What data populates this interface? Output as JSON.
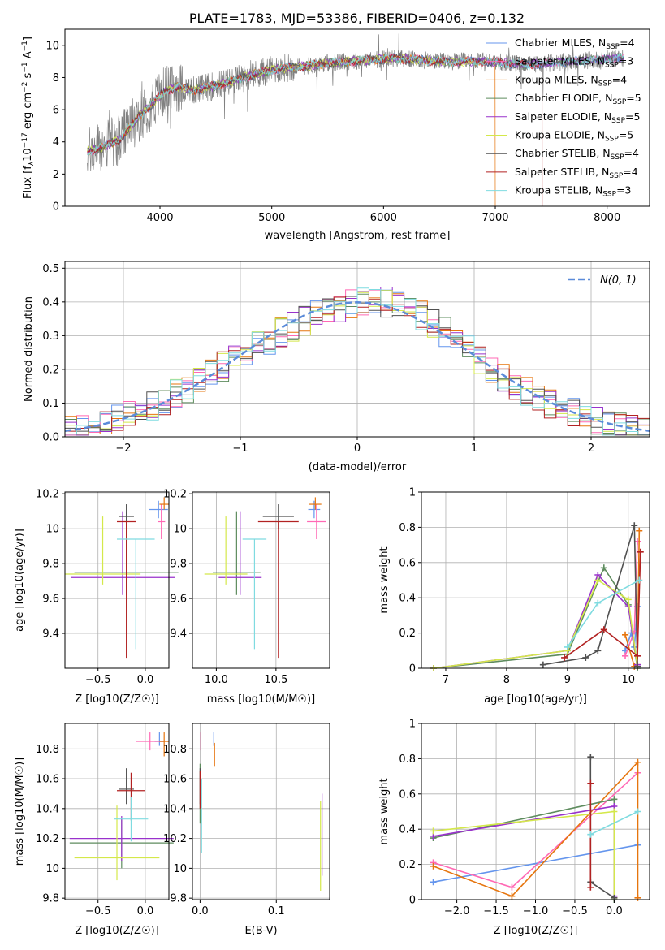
{
  "chart_data": [
    {
      "id": "spectrum",
      "type": "line",
      "title": "PLATE=1783, MJD=53386, FIBERID=0406, z=0.132",
      "xlabel": "wavelength [Angstrom, rest frame]",
      "ylabel": "Flux [f_λ10^-17 erg cm^-2 s^-1 A^-1]",
      "xlim": [
        3150,
        8380
      ],
      "ylim": [
        0,
        11
      ],
      "xticks": [
        4000,
        5000,
        6000,
        7000,
        8000
      ],
      "yticks": [
        0,
        2,
        4,
        6,
        8,
        10
      ],
      "grid": false,
      "legend": "right",
      "continuum": {
        "x": [
          3350,
          3500,
          3650,
          3800,
          3950,
          4050,
          4150,
          4300,
          4500,
          4700,
          4900,
          5100,
          5300,
          5500,
          5700,
          5900,
          6100,
          6300,
          6500,
          6700,
          6900,
          7100,
          7300,
          7500,
          7700,
          7900,
          8100
        ],
        "y": [
          3.4,
          3.7,
          4.2,
          5.5,
          6.5,
          7.2,
          7.4,
          7.2,
          7.5,
          7.9,
          8.3,
          8.6,
          8.7,
          8.9,
          9.0,
          9.1,
          9.2,
          9.1,
          9.0,
          9.0,
          9.0,
          8.9,
          8.8,
          8.9,
          9.0,
          9.1,
          9.2
        ]
      },
      "observed_range": [
        3350,
        8150
      ],
      "series": [
        {
          "name": "Chabrier MILES, N_SSP=4",
          "label_main": "Chabrier MILES, N",
          "label_sub": "SSP",
          "label_end": "=4",
          "color": "#6495ed"
        },
        {
          "name": "Salpeter MILES, N_SSP=3",
          "label_main": "Salpeter MILES, N",
          "label_sub": "SSP",
          "label_end": "=3",
          "color": "#ff69b4"
        },
        {
          "name": "Kroupa MILES, N_SSP=4",
          "label_main": "Kroupa MILES, N",
          "label_sub": "SSP",
          "label_end": "=4",
          "color": "#e6750e"
        },
        {
          "name": "Chabrier ELODIE, N_SSP=5",
          "label_main": "Chabrier ELODIE, N",
          "label_sub": "SSP",
          "label_end": "=5",
          "color": "#5e8c5e"
        },
        {
          "name": "Salpeter ELODIE, N_SSP=5",
          "label_main": "Salpeter ELODIE, N",
          "label_sub": "SSP",
          "label_end": "=5",
          "color": "#9932cc"
        },
        {
          "name": "Kroupa ELODIE, N_SSP=5",
          "label_main": "Kroupa ELODIE, N",
          "label_sub": "SSP",
          "label_end": "=5",
          "color": "#d4e84a"
        },
        {
          "name": "Chabrier STELIB, N_SSP=4",
          "label_main": "Chabrier STELIB, N",
          "label_sub": "SSP",
          "label_end": "=4",
          "color": "#505050"
        },
        {
          "name": "Salpeter STELIB, N_SSP=4",
          "label_main": "Salpeter STELIB, N",
          "label_sub": "SSP",
          "label_end": "=4",
          "color": "#b22222"
        },
        {
          "name": "Kroupa STELIB, N_SSP=3",
          "label_main": "Kroupa STELIB, N",
          "label_sub": "SSP",
          "label_end": "=3",
          "color": "#7fdbe0"
        }
      ],
      "cutoffs": [
        {
          "series": 2,
          "x": 7000
        },
        {
          "series": 5,
          "x": 6800
        },
        {
          "series": 7,
          "x": 7420
        }
      ]
    },
    {
      "id": "residuals",
      "type": "step",
      "xlabel": "(data-model)/error",
      "ylabel": "Normed distribution",
      "xlim": [
        -2.5,
        2.5
      ],
      "ylim": [
        0,
        0.52
      ],
      "xticks": [
        -2,
        -1,
        0,
        1,
        2
      ],
      "xtick_labels": [
        "−2",
        "−1",
        "0",
        "1",
        "2"
      ],
      "yticks": [
        0.0,
        0.1,
        0.2,
        0.3,
        0.4,
        0.5
      ],
      "ytick_labels": [
        "0.0",
        "0.1",
        "0.2",
        "0.3",
        "0.4",
        "0.5"
      ],
      "grid": true,
      "legend": "top-right",
      "gaussian_label": "N(0, 1)",
      "gaussian_color": "#5b8bd9",
      "bin_width": 0.1,
      "bins_start": -2.5
    },
    {
      "id": "age-vs-z",
      "type": "errorbar",
      "xlabel": "Z [log10(Z/Z☉)]",
      "ylabel": "age  [log10(age/yr)]",
      "xlim": [
        -0.85,
        0.25
      ],
      "ylim": [
        9.2,
        10.21
      ],
      "xticks": [
        -0.5,
        0.0
      ],
      "xtick_labels": [
        "−0.5",
        "0.0"
      ],
      "yticks": [
        9.4,
        9.6,
        9.8,
        10.0,
        10.2
      ],
      "grid": true,
      "points": [
        {
          "color": "#6495ed",
          "x": 0.14,
          "xerr": 0.1,
          "y": 10.11,
          "yerr": [
            0.05,
            0.05
          ]
        },
        {
          "color": "#ff69b4",
          "x": 0.17,
          "xerr": 0.04,
          "y": 10.04,
          "yerr": [
            0.1,
            0.1
          ]
        },
        {
          "color": "#e6750e",
          "x": 0.2,
          "xerr": 0.05,
          "y": 10.14,
          "yerr": [
            0.03,
            0.04
          ]
        },
        {
          "color": "#5e8c5e",
          "x": -0.2,
          "xerr": 0.55,
          "y": 9.75,
          "yerr": [
            0.13,
            0.35
          ]
        },
        {
          "color": "#9932cc",
          "x": -0.24,
          "xerr": 0.55,
          "y": 9.72,
          "yerr": [
            0.1,
            0.38
          ]
        },
        {
          "color": "#d4e84a",
          "x": -0.45,
          "xerr": 0.4,
          "y": 9.74,
          "yerr": [
            0.06,
            0.33
          ]
        },
        {
          "color": "#505050",
          "x": -0.2,
          "xerr": 0.08,
          "y": 10.07,
          "yerr": [
            0.07,
            0.07
          ]
        },
        {
          "color": "#b22222",
          "x": -0.2,
          "xerr": 0.1,
          "y": 10.04,
          "yerr": [
            0.78,
            0.0
          ]
        },
        {
          "color": "#7fdbe0",
          "x": -0.1,
          "xerr": 0.2,
          "y": 9.94,
          "yerr": [
            0.63,
            0.0
          ]
        }
      ]
    },
    {
      "id": "age-vs-mass",
      "type": "errorbar",
      "xlabel": "mass [log10(M/M☉)]",
      "ylabel": "",
      "xlim": [
        9.8,
        10.95
      ],
      "ylim": [
        9.2,
        10.21
      ],
      "xticks": [
        10.0,
        10.5
      ],
      "xtick_labels": [
        "10.0",
        "10.5"
      ],
      "yticks": [
        9.4,
        9.6,
        9.8,
        10.0,
        10.2
      ],
      "grid": true,
      "points": [
        {
          "color": "#6495ed",
          "x": 10.82,
          "xerr": 0.05,
          "y": 10.11,
          "yerr": [
            0.05,
            0.05
          ]
        },
        {
          "color": "#ff69b4",
          "x": 10.84,
          "xerr": 0.08,
          "y": 10.04,
          "yerr": [
            0.1,
            0.1
          ]
        },
        {
          "color": "#e6750e",
          "x": 10.83,
          "xerr": 0.05,
          "y": 10.14,
          "yerr": [
            0.03,
            0.04
          ]
        },
        {
          "color": "#5e8c5e",
          "x": 10.17,
          "xerr": 0.2,
          "y": 9.75,
          "yerr": [
            0.13,
            0.35
          ]
        },
        {
          "color": "#9932cc",
          "x": 10.2,
          "xerr": 0.18,
          "y": 9.72,
          "yerr": [
            0.1,
            0.38
          ]
        },
        {
          "color": "#d4e84a",
          "x": 10.08,
          "xerr": 0.18,
          "y": 9.74,
          "yerr": [
            0.06,
            0.33
          ]
        },
        {
          "color": "#505050",
          "x": 10.52,
          "xerr": 0.13,
          "y": 10.07,
          "yerr": [
            0.07,
            0.07
          ]
        },
        {
          "color": "#b22222",
          "x": 10.52,
          "xerr": 0.17,
          "y": 10.04,
          "yerr": [
            0.78,
            0.0
          ]
        },
        {
          "color": "#7fdbe0",
          "x": 10.32,
          "xerr": 0.1,
          "y": 9.94,
          "yerr": [
            0.63,
            0.0
          ]
        }
      ]
    },
    {
      "id": "weight-vs-age",
      "type": "line",
      "xlabel": "age  [log10(age/yr)]",
      "ylabel": "mass weight",
      "xlim": [
        6.6,
        10.35
      ],
      "ylim": [
        0,
        1
      ],
      "xticks": [
        7,
        8,
        9,
        10
      ],
      "yticks": [
        0.0,
        0.2,
        0.4,
        0.6,
        0.8,
        1.0
      ],
      "grid": true,
      "series": [
        {
          "color": "#6495ed",
          "x": [
            9.95,
            10.05,
            10.1,
            10.15
          ],
          "y": [
            0.1,
            0.2,
            0.12,
            0.35
          ]
        },
        {
          "color": "#ff69b4",
          "x": [
            9.95,
            10.1,
            10.15
          ],
          "y": [
            0.07,
            0.21,
            0.72
          ]
        },
        {
          "color": "#e6750e",
          "x": [
            9.95,
            10.1,
            10.15,
            10.18
          ],
          "y": [
            0.19,
            0.01,
            0.02,
            0.78
          ]
        },
        {
          "color": "#5e8c5e",
          "x": [
            6.8,
            9.0,
            9.6,
            10.0,
            10.15
          ],
          "y": [
            0.0,
            0.08,
            0.57,
            0.36,
            0.0
          ]
        },
        {
          "color": "#9932cc",
          "x": [
            6.8,
            9.0,
            9.5,
            10.0,
            10.15
          ],
          "y": [
            0.0,
            0.1,
            0.53,
            0.35,
            0.02
          ]
        },
        {
          "color": "#d4e84a",
          "x": [
            6.8,
            9.0,
            9.5,
            10.0,
            10.15
          ],
          "y": [
            0.0,
            0.1,
            0.5,
            0.39,
            0.01
          ]
        },
        {
          "color": "#505050",
          "x": [
            8.6,
            9.3,
            9.5,
            10.1,
            10.15
          ],
          "y": [
            0.02,
            0.06,
            0.1,
            0.81,
            0.01
          ]
        },
        {
          "color": "#b22222",
          "x": [
            8.95,
            9.6,
            10.15,
            10.2
          ],
          "y": [
            0.06,
            0.22,
            0.07,
            0.66
          ]
        },
        {
          "color": "#7fdbe0",
          "x": [
            9.0,
            9.5,
            10.18
          ],
          "y": [
            0.12,
            0.37,
            0.5
          ]
        }
      ]
    },
    {
      "id": "mass-vs-z",
      "type": "errorbar",
      "xlabel": "Z [log10(Z/Z☉)]",
      "ylabel": "mass [log10(M/M☉)]",
      "xlim": [
        -0.85,
        0.25
      ],
      "ylim": [
        9.79,
        10.97
      ],
      "xticks": [
        -0.5,
        0.0
      ],
      "xtick_labels": [
        "−0.5",
        "0.0"
      ],
      "yticks": [
        9.8,
        10.0,
        10.2,
        10.4,
        10.6,
        10.8
      ],
      "grid": true,
      "points": [
        {
          "color": "#6495ed",
          "x": 0.15,
          "xerr": 0.05,
          "y": 10.85,
          "yerr": [
            0.03,
            0.06
          ]
        },
        {
          "color": "#ff69b4",
          "x": 0.05,
          "xerr": 0.15,
          "y": 10.85,
          "yerr": [
            0.06,
            0.06
          ]
        },
        {
          "color": "#e6750e",
          "x": 0.2,
          "xerr": 0.05,
          "y": 10.85,
          "yerr": [
            0.1,
            0.06
          ]
        },
        {
          "color": "#5e8c5e",
          "x": -0.25,
          "xerr": 0.55,
          "y": 10.17,
          "yerr": [
            0.17,
            0.17
          ]
        },
        {
          "color": "#9932cc",
          "x": -0.25,
          "xerr": 0.55,
          "y": 10.2,
          "yerr": [
            0.15,
            0.15
          ]
        },
        {
          "color": "#d4e84a",
          "x": -0.3,
          "xerr": 0.45,
          "y": 10.07,
          "yerr": [
            0.15,
            0.35
          ]
        },
        {
          "color": "#505050",
          "x": -0.2,
          "xerr": 0.08,
          "y": 10.53,
          "yerr": [
            0.1,
            0.14
          ]
        },
        {
          "color": "#b22222",
          "x": -0.15,
          "xerr": 0.15,
          "y": 10.52,
          "yerr": [
            0.2,
            0.12
          ]
        },
        {
          "color": "#7fdbe0",
          "x": -0.15,
          "xerr": 0.18,
          "y": 10.33,
          "yerr": [
            0.15,
            0.15
          ]
        }
      ]
    },
    {
      "id": "mass-vs-ebv",
      "type": "errorbar",
      "xlabel": "E(B-V)",
      "ylabel": "",
      "xlim": [
        -0.01,
        0.17
      ],
      "ylim": [
        9.79,
        10.97
      ],
      "xticks": [
        0.0,
        0.1
      ],
      "xtick_labels": [
        "0.0",
        "0.1"
      ],
      "yticks": [
        9.8,
        10.0,
        10.2,
        10.4,
        10.6,
        10.8
      ],
      "grid": true,
      "points": [
        {
          "color": "#6495ed",
          "x": 0.018,
          "xerr": 0.0,
          "y": 10.85,
          "yerr": [
            0.03,
            0.06
          ]
        },
        {
          "color": "#ff69b4",
          "x": 0.001,
          "xerr": 0.0,
          "y": 10.85,
          "yerr": [
            0.06,
            0.06
          ]
        },
        {
          "color": "#e6750e",
          "x": 0.019,
          "xerr": 0.0,
          "y": 10.78,
          "yerr": [
            0.1,
            0.06
          ]
        },
        {
          "color": "#5e8c5e",
          "x": 0.0,
          "xerr": 0.0,
          "y": 10.6,
          "yerr": [
            0.3,
            0.1
          ]
        },
        {
          "color": "#9932cc",
          "x": 0.16,
          "xerr": 0.0,
          "y": 10.2,
          "yerr": [
            0.25,
            0.3
          ]
        },
        {
          "color": "#d4e84a",
          "x": 0.158,
          "xerr": 0.0,
          "y": 10.15,
          "yerr": [
            0.3,
            0.3
          ]
        },
        {
          "color": "#505050",
          "x": 0.0,
          "xerr": 0.0,
          "y": 10.53,
          "yerr": [
            0.1,
            0.14
          ]
        },
        {
          "color": "#b22222",
          "x": 0.0,
          "xerr": 0.0,
          "y": 10.5,
          "yerr": [
            0.1,
            0.15
          ]
        },
        {
          "color": "#7fdbe0",
          "x": 0.002,
          "xerr": 0.0,
          "y": 10.4,
          "yerr": [
            0.3,
            0.2
          ]
        }
      ]
    },
    {
      "id": "weight-vs-z",
      "type": "line",
      "xlabel": "Z [log10(Z/Z☉)]",
      "ylabel": "mass weight",
      "xlim": [
        -2.45,
        0.45
      ],
      "ylim": [
        0,
        1
      ],
      "xticks": [
        -2.0,
        -1.5,
        -1.0,
        -0.5,
        0.0
      ],
      "xtick_labels": [
        "−2.0",
        "−1.5",
        "−1.0",
        "−0.5",
        "0.0"
      ],
      "yticks": [
        0.0,
        0.2,
        0.4,
        0.6,
        0.8,
        1.0
      ],
      "grid": true,
      "series": [
        {
          "color": "#6495ed",
          "x": [
            -2.3,
            0.3
          ],
          "y": [
            0.1,
            0.31
          ]
        },
        {
          "color": "#ff69b4",
          "x": [
            -2.3,
            -1.3,
            0.3
          ],
          "y": [
            0.21,
            0.07,
            0.72
          ]
        },
        {
          "color": "#e6750e",
          "x": [
            -2.3,
            -1.3,
            0.3,
            0.3
          ],
          "y": [
            0.19,
            0.02,
            0.78,
            0.01
          ]
        },
        {
          "color": "#5e8c5e",
          "x": [
            -2.3,
            0.0,
            0.0
          ],
          "y": [
            0.35,
            0.57,
            0.0
          ]
        },
        {
          "color": "#9932cc",
          "x": [
            -2.3,
            0.0,
            0.0
          ],
          "y": [
            0.36,
            0.53,
            0.02
          ]
        },
        {
          "color": "#d4e84a",
          "x": [
            -2.3,
            0.0,
            0.0
          ],
          "y": [
            0.39,
            0.5,
            0.01
          ]
        },
        {
          "color": "#505050",
          "x": [
            -0.3,
            -0.3,
            0.0
          ],
          "y": [
            0.81,
            0.1,
            0.01
          ]
        },
        {
          "color": "#b22222",
          "x": [
            -0.3,
            -0.3
          ],
          "y": [
            0.66,
            0.07
          ]
        },
        {
          "color": "#7fdbe0",
          "x": [
            -0.3,
            0.3
          ],
          "y": [
            0.37,
            0.5
          ]
        }
      ]
    }
  ]
}
